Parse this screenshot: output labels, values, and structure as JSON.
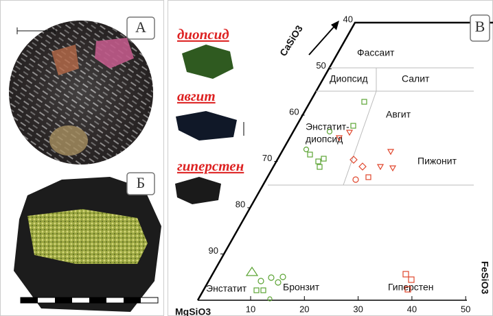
{
  "panels": {
    "a": "А",
    "b": "Б",
    "v": "В"
  },
  "minerals": [
    "диопсид",
    "авгит",
    "гиперстен"
  ],
  "axes": {
    "top": "CaSiO3",
    "right": "FeSiO3",
    "bottom": "MgSiO3"
  },
  "left_ticks": [
    "40",
    "50",
    "60",
    "70",
    "80",
    "90"
  ],
  "bottom_ticks": [
    "10",
    "20",
    "30",
    "40",
    "50"
  ],
  "fields": [
    "Фассаит",
    "Диопсид",
    "Салит",
    "Авгит",
    "Энстатит-",
    "диопсид",
    "Пижонит",
    "Энстатит",
    "Бронзит",
    "Гиперстен"
  ]
}
